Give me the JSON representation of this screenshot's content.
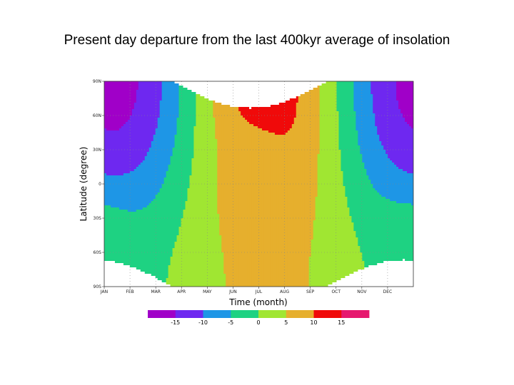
{
  "title": "Present day departure from the last 400kyr average of insolation",
  "chart_data": {
    "type": "heatmap",
    "xlabel": "Time (month)",
    "ylabel": "Latitude (degree)",
    "x_ticks": [
      "JAN",
      "FEB",
      "MAR",
      "APR",
      "MAY",
      "JUN",
      "JUL",
      "AUG",
      "SEP",
      "OCT",
      "NOV",
      "DEC"
    ],
    "y_ticks": [
      {
        "value": 90,
        "label": "90N"
      },
      {
        "value": 60,
        "label": "60N"
      },
      {
        "value": 30,
        "label": "30N"
      },
      {
        "value": 0,
        "label": "0"
      },
      {
        "value": -30,
        "label": "30S"
      },
      {
        "value": -60,
        "label": "60S"
      },
      {
        "value": -90,
        "label": "90S"
      }
    ],
    "ylim": [
      -90,
      90
    ],
    "xlim": [
      1,
      13
    ],
    "colorbar": {
      "levels": [
        -15,
        -10,
        -5,
        0,
        5,
        10,
        15
      ],
      "labels": [
        "-15",
        "-10",
        "-5",
        "0",
        "5",
        "10",
        "15"
      ],
      "colors": [
        "#a000c8",
        "#6e28f0",
        "#1e96e6",
        "#1ed282",
        "#a0e632",
        "#e6af2d",
        "#f00a0a",
        "#e6186e"
      ]
    },
    "polar_night_color": "#ffffff"
  }
}
